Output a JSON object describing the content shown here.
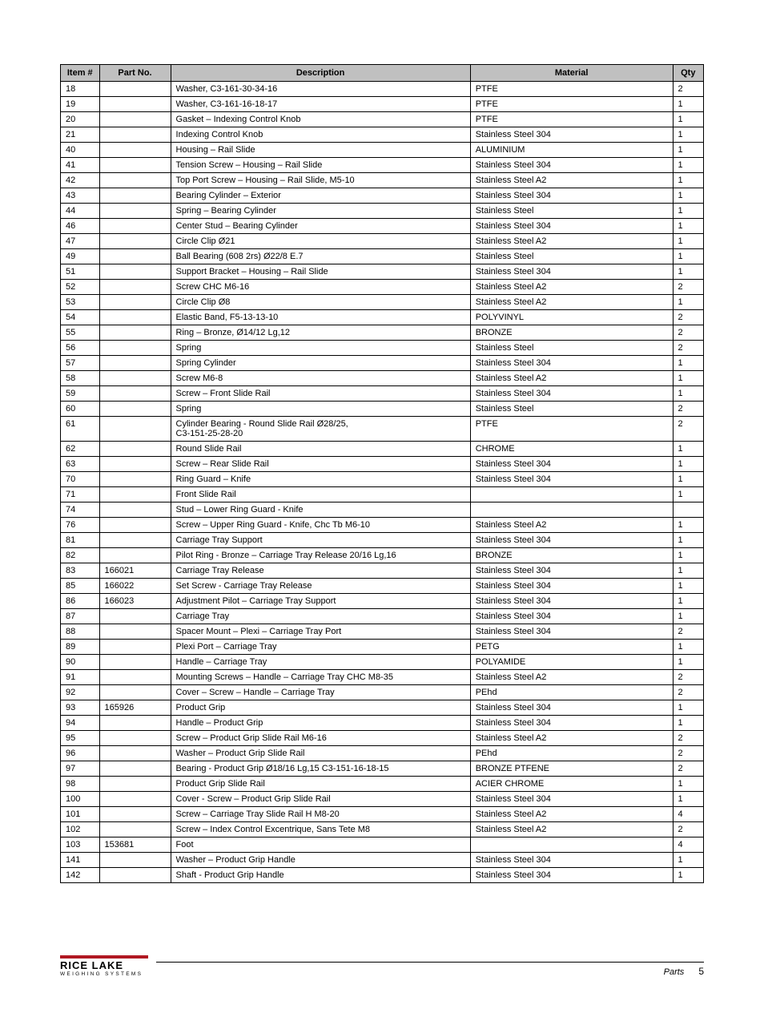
{
  "table": {
    "headers": {
      "item": "Item #",
      "partno": "Part No.",
      "description": "Description",
      "material": "Material",
      "qty": "Qty"
    },
    "rows": [
      {
        "item": "18",
        "partno": "",
        "description": "Washer, C3-161-30-34-16",
        "material": "PTFE",
        "qty": "2"
      },
      {
        "item": "19",
        "partno": "",
        "description": "Washer, C3-161-16-18-17",
        "material": "PTFE",
        "qty": "1"
      },
      {
        "item": "20",
        "partno": "",
        "description": "Gasket – Indexing Control Knob",
        "material": "PTFE",
        "qty": "1"
      },
      {
        "item": "21",
        "partno": "",
        "description": "Indexing Control Knob",
        "material": "Stainless Steel 304",
        "qty": "1"
      },
      {
        "item": "40",
        "partno": "",
        "description": "Housing – Rail Slide",
        "material": "ALUMINIUM",
        "qty": "1"
      },
      {
        "item": "41",
        "partno": "",
        "description": "Tension Screw – Housing – Rail Slide",
        "material": "Stainless Steel 304",
        "qty": "1"
      },
      {
        "item": "42",
        "partno": "",
        "description": "Top Port Screw – Housing – Rail Slide, M5-10",
        "material": "Stainless Steel A2",
        "qty": "1"
      },
      {
        "item": "43",
        "partno": "",
        "description": "Bearing Cylinder – Exterior",
        "material": "Stainless Steel 304",
        "qty": "1"
      },
      {
        "item": "44",
        "partno": "",
        "description": "Spring – Bearing Cylinder",
        "material": "Stainless Steel",
        "qty": "1"
      },
      {
        "item": "46",
        "partno": "",
        "description": "Center Stud – Bearing Cylinder",
        "material": "Stainless Steel 304",
        "qty": "1"
      },
      {
        "item": "47",
        "partno": "",
        "description": "Circle Clip Ø21",
        "material": "Stainless Steel A2",
        "qty": "1"
      },
      {
        "item": "49",
        "partno": "",
        "description": "Ball Bearing (608 2rs)  Ø22/8  E.7",
        "material": "Stainless Steel",
        "qty": "1"
      },
      {
        "item": "51",
        "partno": "",
        "description": "Support Bracket – Housing – Rail Slide",
        "material": "Stainless Steel 304",
        "qty": "1"
      },
      {
        "item": "52",
        "partno": "",
        "description": "Screw CHC M6-16",
        "material": "Stainless Steel A2",
        "qty": "2"
      },
      {
        "item": "53",
        "partno": "",
        "description": "Circle Clip Ø8",
        "material": "Stainless Steel A2",
        "qty": "1"
      },
      {
        "item": "54",
        "partno": "",
        "description": "Elastic Band, F5-13-13-10",
        "material": "POLYVINYL",
        "qty": "2"
      },
      {
        "item": "55",
        "partno": "",
        "description": "Ring – Bronze, Ø14/12  Lg,12",
        "material": "BRONZE",
        "qty": "2"
      },
      {
        "item": "56",
        "partno": "",
        "description": "Spring",
        "material": "Stainless Steel",
        "qty": "2"
      },
      {
        "item": "57",
        "partno": "",
        "description": "Spring Cylinder",
        "material": "Stainless Steel 304",
        "qty": "1"
      },
      {
        "item": "58",
        "partno": "",
        "description": "Screw M6-8",
        "material": "Stainless Steel A2",
        "qty": "1"
      },
      {
        "item": "59",
        "partno": "",
        "description": "Screw – Front Slide Rail",
        "material": "Stainless Steel 304",
        "qty": "1"
      },
      {
        "item": "60",
        "partno": "",
        "description": "Spring",
        "material": "Stainless Steel",
        "qty": "2"
      },
      {
        "item": "61",
        "partno": "",
        "description": "Cylinder Bearing - Round Slide Rail Ø28/25,\nC3-151-25-28-20",
        "material": "PTFE",
        "qty": "2"
      },
      {
        "item": "62",
        "partno": "",
        "description": "Round Slide Rail",
        "material": "CHROME",
        "qty": "1"
      },
      {
        "item": "63",
        "partno": "",
        "description": "Screw – Rear Slide Rail",
        "material": "Stainless Steel 304",
        "qty": "1"
      },
      {
        "item": "70",
        "partno": "",
        "description": "Ring Guard – Knife",
        "material": "Stainless Steel 304",
        "qty": "1"
      },
      {
        "item": "71",
        "partno": "",
        "description": "Front Slide Rail",
        "material": "",
        "qty": "1"
      },
      {
        "item": "74",
        "partno": "",
        "description": "Stud  – Lower Ring Guard - Knife",
        "material": "",
        "qty": ""
      },
      {
        "item": "76",
        "partno": "",
        "description": "Screw – Upper Ring Guard - Knife, Chc Tb M6-10",
        "material": "Stainless Steel A2",
        "qty": "1"
      },
      {
        "item": "81",
        "partno": "",
        "description": "Carriage Tray Support",
        "material": "Stainless Steel 304",
        "qty": "1"
      },
      {
        "item": "82",
        "partno": "",
        "description": "Pilot Ring - Bronze – Carriage Tray Release 20/16  Lg,16",
        "material": "BRONZE",
        "qty": "1"
      },
      {
        "item": "83",
        "partno": "166021",
        "description": "Carriage Tray Release",
        "material": "Stainless Steel 304",
        "qty": "1"
      },
      {
        "item": "85",
        "partno": "166022",
        "description": "Set Screw - Carriage Tray Release",
        "material": "Stainless Steel 304",
        "qty": "1"
      },
      {
        "item": "86",
        "partno": "166023",
        "description": "Adjustment Pilot – Carriage Tray Support",
        "material": "Stainless Steel 304",
        "qty": "1"
      },
      {
        "item": "87",
        "partno": "",
        "description": "Carriage Tray",
        "material": "Stainless Steel 304",
        "qty": "1"
      },
      {
        "item": "88",
        "partno": "",
        "description": "Spacer Mount – Plexi – Carriage Tray Port",
        "material": "Stainless Steel 304",
        "qty": "2"
      },
      {
        "item": "89",
        "partno": "",
        "description": "Plexi Port – Carriage Tray",
        "material": "PETG",
        "qty": "1"
      },
      {
        "item": "90",
        "partno": "",
        "description": "Handle – Carriage Tray",
        "material": "POLYAMIDE",
        "qty": "1"
      },
      {
        "item": "91",
        "partno": "",
        "description": "Mounting Screws – Handle – Carriage Tray CHC M8-35",
        "material": "Stainless Steel A2",
        "qty": "2"
      },
      {
        "item": "92",
        "partno": "",
        "description": "Cover – Screw – Handle – Carriage Tray",
        "material": "PEhd",
        "qty": "2"
      },
      {
        "item": "93",
        "partno": "165926",
        "description": "Product Grip",
        "material": "Stainless Steel 304",
        "qty": "1"
      },
      {
        "item": "94",
        "partno": "",
        "description": "Handle – Product Grip",
        "material": "Stainless Steel 304",
        "qty": "1"
      },
      {
        "item": "95",
        "partno": "",
        "description": "Screw – Product Grip Slide Rail M6-16",
        "material": "Stainless Steel A2",
        "qty": "2"
      },
      {
        "item": "96",
        "partno": "",
        "description": "Washer – Product Grip Slide Rail",
        "material": "PEhd",
        "qty": "2"
      },
      {
        "item": "97",
        "partno": "",
        "description": "Bearing - Product Grip Ø18/16  Lg,15 C3-151-16-18-15",
        "material": "BRONZE PTFENE",
        "qty": "2"
      },
      {
        "item": "98",
        "partno": "",
        "description": "Product Grip Slide Rail",
        "material": "ACIER CHROME",
        "qty": "1"
      },
      {
        "item": "100",
        "partno": "",
        "description": "Cover - Screw – Product Grip Slide Rail",
        "material": "Stainless Steel 304",
        "qty": "1"
      },
      {
        "item": "101",
        "partno": "",
        "description": "Screw – Carriage Tray Slide Rail H M8-20",
        "material": "Stainless Steel A2",
        "qty": "4"
      },
      {
        "item": "102",
        "partno": "",
        "description": "Screw – Index Control Excentrique, Sans Tete M8",
        "material": "Stainless Steel A2",
        "qty": "2"
      },
      {
        "item": "103",
        "partno": "153681",
        "description": "Foot",
        "material": "",
        "qty": "4"
      },
      {
        "item": "141",
        "partno": "",
        "description": "Washer – Product Grip Handle",
        "material": "Stainless Steel 304",
        "qty": "1"
      },
      {
        "item": "142",
        "partno": "",
        "description": "Shaft - Product Grip Handle",
        "material": "Stainless Steel 304",
        "qty": "1"
      }
    ]
  },
  "footer": {
    "logo_main": "RICE LAKE",
    "logo_sub": "WEIGHING SYSTEMS",
    "section": "Parts",
    "page": "5"
  },
  "style": {
    "header_bg": "#c0c0c0",
    "border_color": "#000000",
    "text_color": "#000000",
    "logo_bar_color": "#b01822",
    "font_size_table": 11,
    "col_widths": {
      "item": 48,
      "partno": 88,
      "desc": 370,
      "material": 250,
      "qty": 38
    }
  }
}
